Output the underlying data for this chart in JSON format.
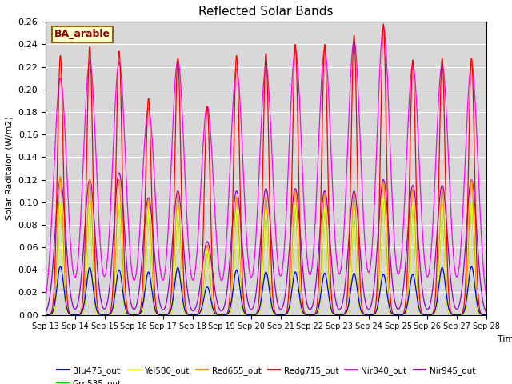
{
  "title": "Reflected Solar Bands",
  "xlabel": "Time",
  "ylabel": "Solar Raditaion (W/m2)",
  "annotation": "BA_arable",
  "ylim": [
    0.0,
    0.26
  ],
  "yticks": [
    0.0,
    0.02,
    0.04,
    0.06,
    0.08,
    0.1,
    0.12,
    0.14,
    0.16,
    0.18,
    0.2,
    0.22,
    0.24,
    0.26
  ],
  "xtick_labels": [
    "Sep 13",
    "Sep 14",
    "Sep 15",
    "Sep 16",
    "Sep 17",
    "Sep 18",
    "Sep 19",
    "Sep 20",
    "Sep 21",
    "Sep 22",
    "Sep 23",
    "Sep 24",
    "Sep 25",
    "Sep 26",
    "Sep 27",
    "Sep 28"
  ],
  "n_days": 15,
  "background_color": "#d8d8d8",
  "grid_color": "#ffffff",
  "title_fontsize": 11,
  "series_colors": {
    "Blu475_out": "#0000ff",
    "Grn535_out": "#00cc00",
    "Yel580_out": "#ffff00",
    "Red655_out": "#ff8800",
    "Redg715_out": "#ff0000",
    "Nir840_out": "#ff00ff",
    "Nir945_out": "#9900cc"
  },
  "day_peaks": {
    "Redg715_out": [
      0.23,
      0.238,
      0.234,
      0.192,
      0.228,
      0.185,
      0.23,
      0.232,
      0.24,
      0.24,
      0.248,
      0.258,
      0.226,
      0.228,
      0.228
    ],
    "Nir840_out": [
      0.21,
      0.225,
      0.224,
      0.183,
      0.226,
      0.185,
      0.218,
      0.22,
      0.235,
      0.235,
      0.243,
      0.255,
      0.222,
      0.222,
      0.222
    ],
    "Nir945_out": [
      0.12,
      0.12,
      0.126,
      0.104,
      0.11,
      0.065,
      0.11,
      0.112,
      0.112,
      0.11,
      0.11,
      0.12,
      0.115,
      0.115,
      0.12
    ],
    "Red655_out": [
      0.123,
      0.12,
      0.12,
      0.103,
      0.108,
      0.062,
      0.105,
      0.105,
      0.11,
      0.108,
      0.108,
      0.118,
      0.112,
      0.112,
      0.12
    ],
    "Grn535_out": [
      0.1,
      0.1,
      0.098,
      0.095,
      0.095,
      0.057,
      0.094,
      0.094,
      0.098,
      0.095,
      0.095,
      0.104,
      0.097,
      0.097,
      0.1
    ],
    "Yel580_out": [
      0.1,
      0.1,
      0.098,
      0.095,
      0.095,
      0.057,
      0.094,
      0.094,
      0.098,
      0.095,
      0.095,
      0.104,
      0.097,
      0.097,
      0.1
    ],
    "Blu475_out": [
      0.043,
      0.042,
      0.04,
      0.038,
      0.042,
      0.025,
      0.04,
      0.038,
      0.038,
      0.037,
      0.037,
      0.036,
      0.036,
      0.042,
      0.043
    ]
  },
  "day_widths": {
    "Nir840_out": 0.55,
    "Nir945_out": 0.45,
    "Redg715_out": 0.25,
    "Red655_out": 0.22,
    "Grn535_out": 0.2,
    "Yel580_out": 0.2,
    "Blu475_out": 0.28
  }
}
